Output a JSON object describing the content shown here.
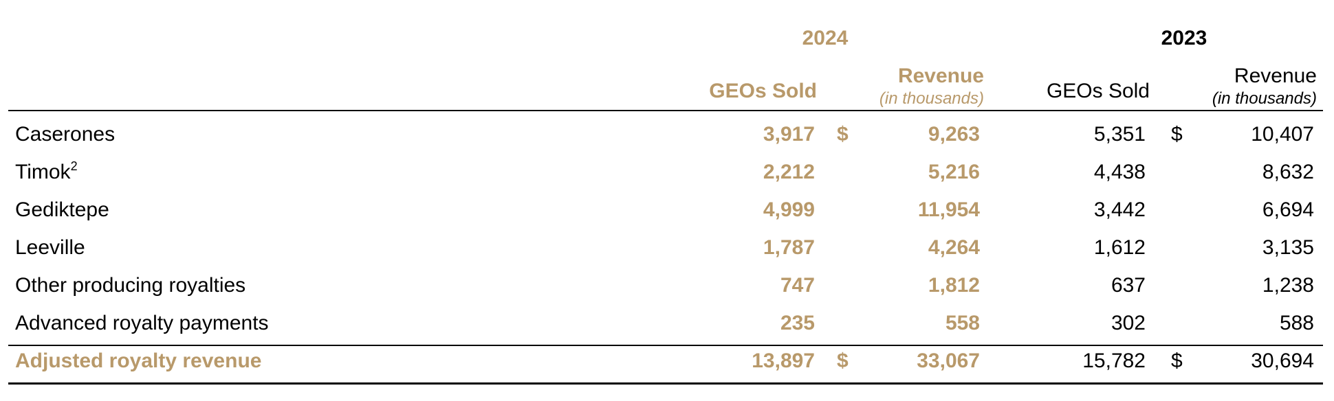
{
  "years": {
    "current": "2024",
    "prior": "2023"
  },
  "columns": {
    "geos_sold": "GEOs Sold",
    "revenue": "Revenue",
    "revenue_unit": "(in thousands)"
  },
  "rows": [
    {
      "label": "Caserones",
      "sup": "",
      "geos_2024": "3,917",
      "cur_2024": "$",
      "rev_2024": "9,263",
      "geos_2023": "5,351",
      "cur_2023": "$",
      "rev_2023": "10,407"
    },
    {
      "label": "Timok",
      "sup": "2",
      "geos_2024": "2,212",
      "cur_2024": "",
      "rev_2024": "5,216",
      "geos_2023": "4,438",
      "cur_2023": "",
      "rev_2023": "8,632"
    },
    {
      "label": "Gediktepe",
      "sup": "",
      "geos_2024": "4,999",
      "cur_2024": "",
      "rev_2024": "11,954",
      "geos_2023": "3,442",
      "cur_2023": "",
      "rev_2023": "6,694"
    },
    {
      "label": "Leeville",
      "sup": "",
      "geos_2024": "1,787",
      "cur_2024": "",
      "rev_2024": "4,264",
      "geos_2023": "1,612",
      "cur_2023": "",
      "rev_2023": "3,135"
    },
    {
      "label": "Other producing royalties",
      "sup": "",
      "geos_2024": "747",
      "cur_2024": "",
      "rev_2024": "1,812",
      "geos_2023": "637",
      "cur_2023": "",
      "rev_2023": "1,238"
    },
    {
      "label": "Advanced royalty payments",
      "sup": "",
      "geos_2024": "235",
      "cur_2024": "",
      "rev_2024": "558",
      "geos_2023": "302",
      "cur_2023": "",
      "rev_2023": "588"
    }
  ],
  "total": {
    "label": "Adjusted royalty revenue",
    "geos_2024": "13,897",
    "cur_2024": "$",
    "rev_2024": "33,067",
    "geos_2023": "15,782",
    "cur_2023": "$",
    "rev_2023": "30,694"
  },
  "colors": {
    "accent": "#b8996a",
    "text": "#000000"
  }
}
